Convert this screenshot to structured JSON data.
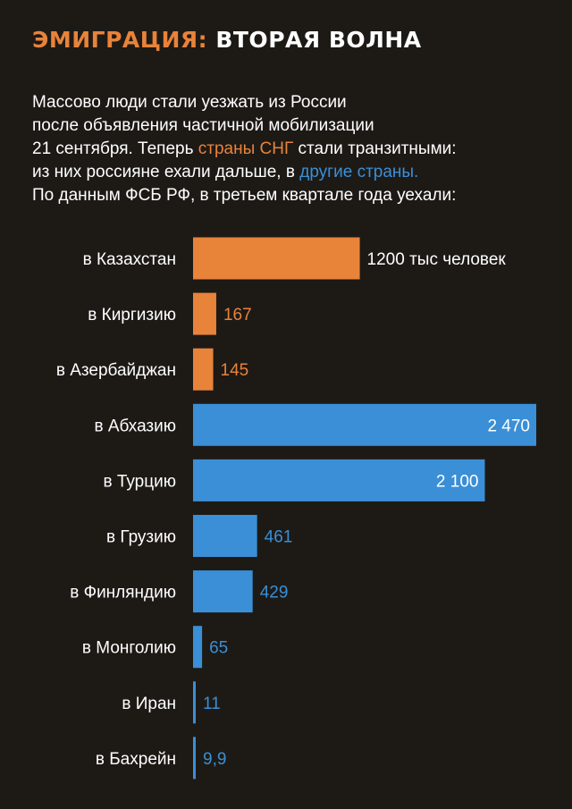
{
  "header": {
    "title_accent": "ЭМИГРАЦИЯ:",
    "title_rest": " ВТОРАЯ ВОЛНА"
  },
  "intro": {
    "line1": "Массово люди стали уезжать из России",
    "line2": "после объявления частичной мобилизации",
    "line3_a": "21 сентября. Теперь ",
    "line3_hl": "страны СНГ",
    "line3_b": " стали транзитными:",
    "line4_a": "из них россияне ехали дальше, в ",
    "line4_hl": "другие страны.",
    "line5": "По данным ФСБ РФ, в третьем квартале года уехали:"
  },
  "colors": {
    "background": "#1d1a16",
    "cis": "#e8833a",
    "other": "#3a8fd6",
    "text": "#ffffff"
  },
  "chart_data": {
    "type": "bar",
    "orientation": "horizontal",
    "categories": [
      "в Казахстан",
      "в Киргизию",
      "в Азербайджан",
      "в Абхазию",
      "в Турцию",
      "в Грузию",
      "в Финляндию",
      "в Монголию",
      "в Иран",
      "в Бахрейн"
    ],
    "values": [
      1200,
      167,
      145,
      2470,
      2100,
      461,
      429,
      65,
      11,
      9.9
    ],
    "value_labels": [
      "1200 тыс человек",
      "167",
      "145",
      "2 470",
      "2 100",
      "461",
      "429",
      "65",
      "11",
      "9,9"
    ],
    "groups": [
      "cis",
      "cis",
      "cis",
      "other",
      "other",
      "other",
      "other",
      "other",
      "other",
      "other"
    ],
    "label_inside": [
      false,
      false,
      false,
      true,
      true,
      false,
      false,
      false,
      false,
      false
    ],
    "xlim": [
      0,
      2470
    ]
  }
}
